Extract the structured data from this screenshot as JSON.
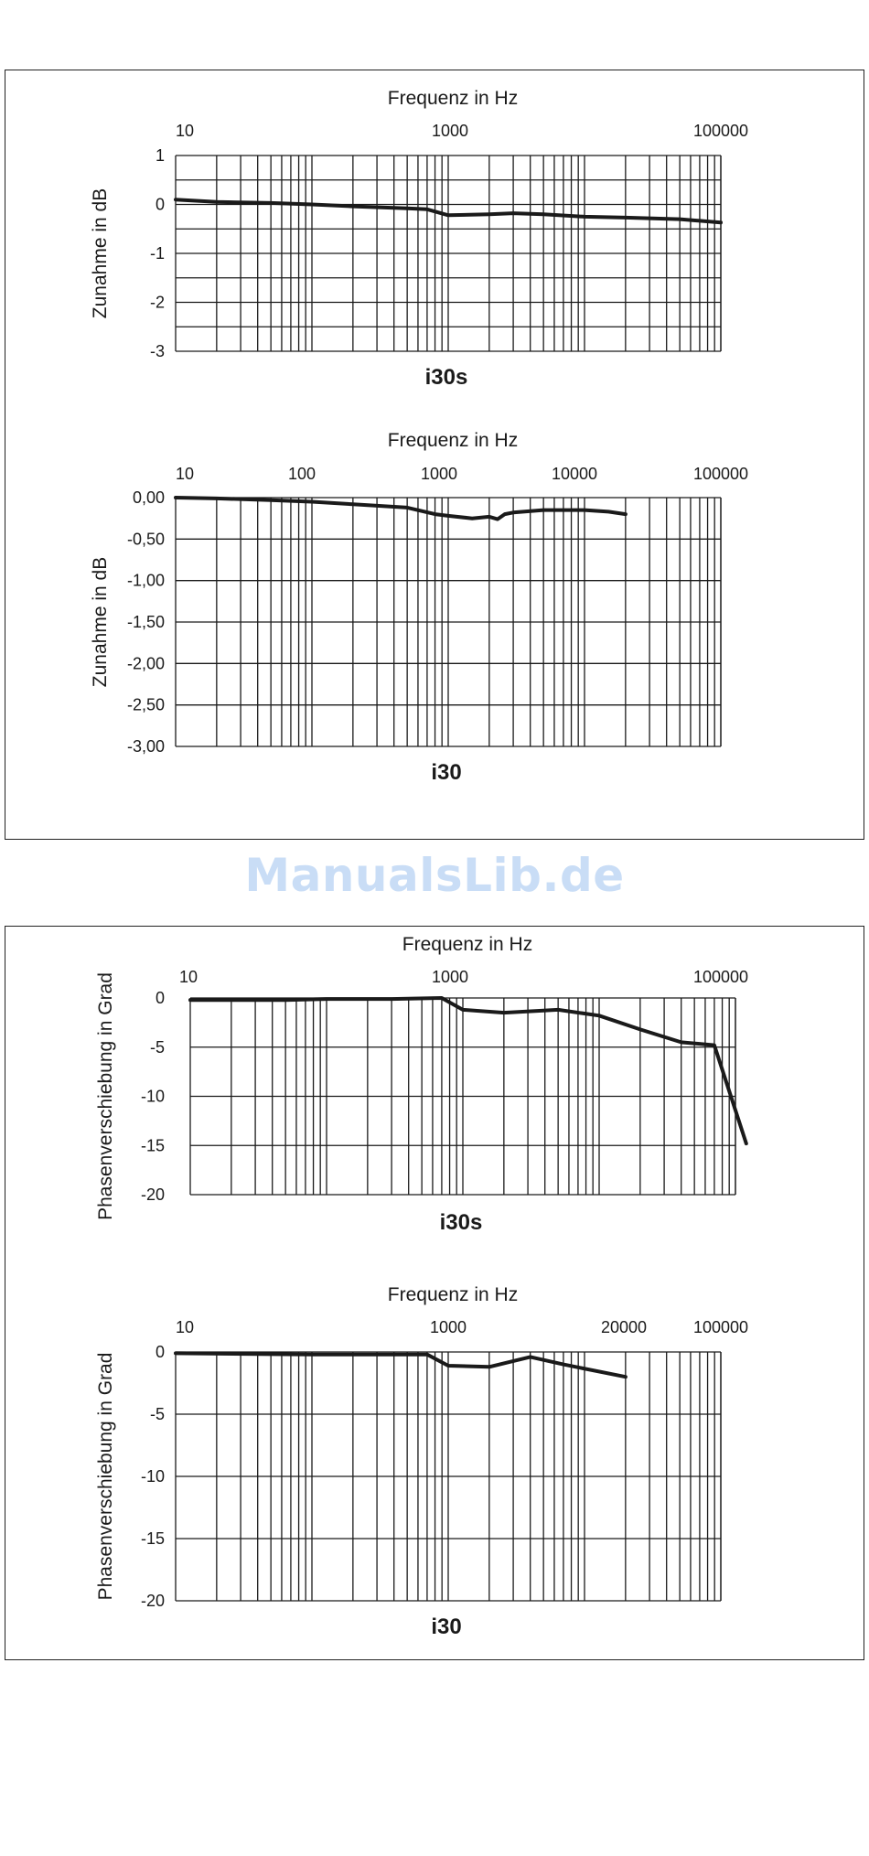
{
  "watermark": "ManualsLib.de",
  "chart_data": [
    {
      "id": "chart1",
      "type": "line",
      "title": "i30s",
      "xlabel": "Frequenz in Hz",
      "ylabel": "Zunahme in dB",
      "xscale": "log",
      "xlim": [
        10,
        100000
      ],
      "ylim": [
        -3,
        1
      ],
      "x_ticks": [
        "10",
        "1000",
        "100000"
      ],
      "y_ticks": [
        "1",
        "0",
        "-1",
        "-2",
        "-3"
      ],
      "grid": true,
      "series": [
        {
          "x": [
            10,
            20,
            50,
            100,
            200,
            500,
            700,
            1000,
            2000,
            3000,
            5000,
            10000,
            20000,
            50000,
            100000
          ],
          "y": [
            0.1,
            0.05,
            0.03,
            0.0,
            -0.04,
            -0.08,
            -0.1,
            -0.22,
            -0.2,
            -0.18,
            -0.2,
            -0.25,
            -0.27,
            -0.3,
            -0.37
          ]
        }
      ]
    },
    {
      "id": "chart2",
      "type": "line",
      "title": "i30",
      "xlabel": "Frequenz in Hz",
      "ylabel": "Zunahme in dB",
      "xscale": "log",
      "xlim": [
        10,
        100000
      ],
      "ylim": [
        -3,
        0
      ],
      "x_ticks": [
        "10",
        "100",
        "1000",
        "10000",
        "100000"
      ],
      "y_ticks": [
        "0,00",
        "-0,50",
        "-1,00",
        "-1,50",
        "-2,00",
        "-2,50",
        "-3,00"
      ],
      "grid": true,
      "series": [
        {
          "x": [
            10,
            20,
            50,
            100,
            200,
            500,
            800,
            1000,
            1500,
            2000,
            2300,
            2600,
            3000,
            5000,
            10000,
            15000,
            20000
          ],
          "y": [
            0,
            -0.01,
            -0.03,
            -0.05,
            -0.08,
            -0.12,
            -0.2,
            -0.22,
            -0.25,
            -0.23,
            -0.26,
            -0.2,
            -0.18,
            -0.15,
            -0.15,
            -0.17,
            -0.2
          ]
        }
      ]
    },
    {
      "id": "chart3",
      "type": "line",
      "title": "i30s",
      "xlabel": "Frequenz in Hz",
      "ylabel": "Phasenverschiebung in Grad",
      "xscale": "log",
      "xlim": [
        10,
        100000
      ],
      "ylim": [
        -20,
        0
      ],
      "x_ticks": [
        "10",
        "1000",
        "100000"
      ],
      "y_ticks": [
        "0",
        "-5",
        "-10",
        "-15",
        "-20"
      ],
      "grid": true,
      "series": [
        {
          "x": [
            10,
            50,
            100,
            300,
            700,
            1000,
            2000,
            5000,
            10000,
            20000,
            40000,
            70000,
            120000
          ],
          "y": [
            -0.2,
            -0.2,
            -0.1,
            -0.1,
            0,
            -1.2,
            -1.5,
            -1.2,
            -1.8,
            -3.2,
            -4.5,
            -4.8,
            -14.8
          ]
        }
      ]
    },
    {
      "id": "chart4",
      "type": "line",
      "title": "i30",
      "xlabel": "Frequenz in Hz",
      "ylabel": "Phasenverschiebung in Grad",
      "xscale": "log",
      "xlim": [
        10,
        100000
      ],
      "ylim": [
        -20,
        0
      ],
      "x_ticks": [
        "10",
        "1000",
        "20000",
        "100000"
      ],
      "y_ticks": [
        "0",
        "-5",
        "-10",
        "-15",
        "-20"
      ],
      "grid": true,
      "series": [
        {
          "x": [
            10,
            100,
            700,
            1000,
            2000,
            4000,
            7000,
            20000
          ],
          "y": [
            -0.1,
            -0.2,
            -0.2,
            -1.1,
            -1.2,
            -0.4,
            -1.0,
            -2.0
          ]
        }
      ]
    }
  ]
}
